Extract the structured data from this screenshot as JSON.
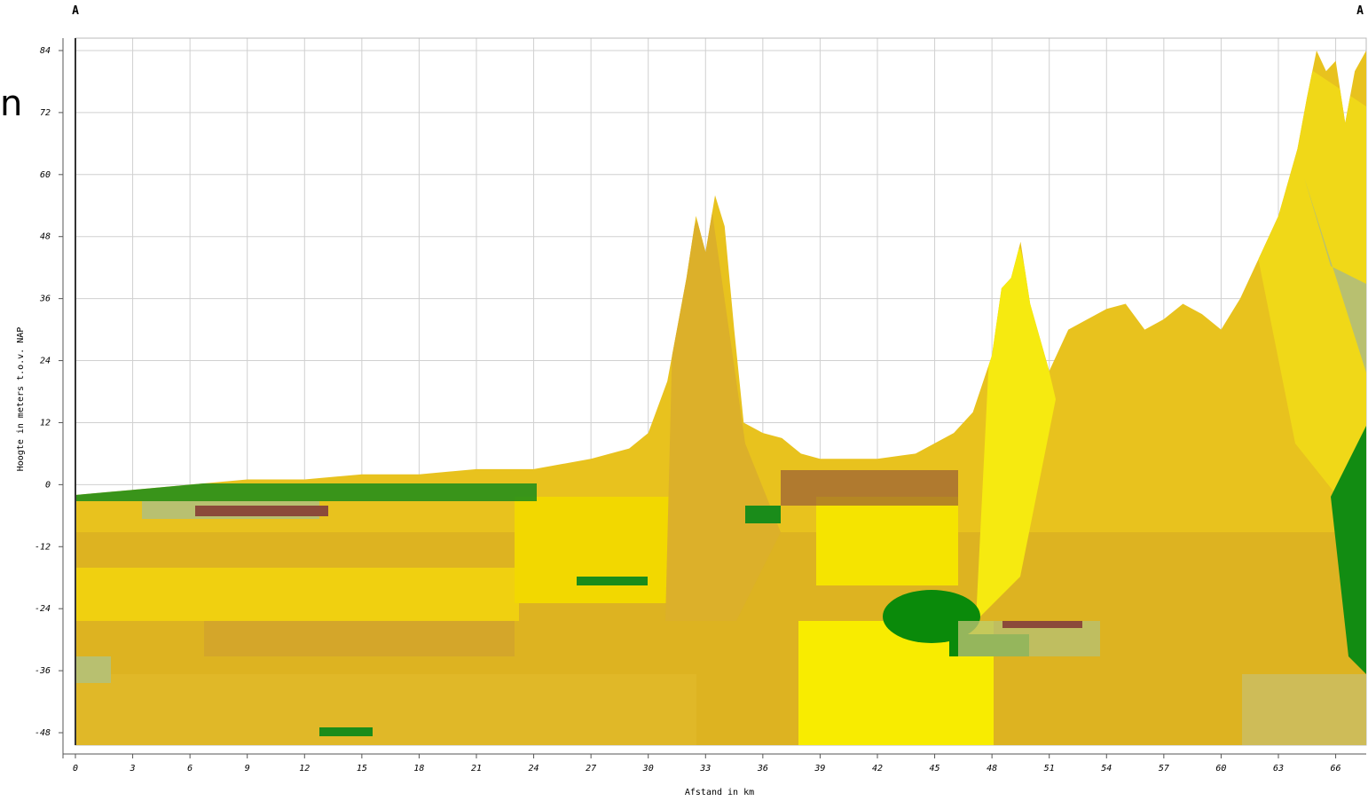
{
  "chart_data": {
    "type": "area",
    "labels": {
      "left": "A",
      "right": "A",
      "edge": "n"
    },
    "x_label": "Afstand in km",
    "y_label": "Hoogte in meters t.o.v. NAP",
    "x": [
      0,
      3,
      6,
      9,
      12,
      15,
      18,
      21,
      24,
      27,
      29,
      30,
      31,
      32,
      32.5,
      33,
      33.5,
      34,
      34.5,
      35,
      36,
      37,
      38,
      39,
      40,
      42,
      44,
      46,
      47,
      48,
      48.5,
      49,
      49.5,
      50,
      51,
      52,
      53,
      54,
      55,
      56,
      57,
      58,
      59,
      60,
      61,
      62,
      63,
      64,
      64.5,
      65,
      65.5,
      66,
      66.5,
      67,
      67.6
    ],
    "values": [
      -2,
      -1,
      0,
      1,
      1,
      2,
      2,
      3,
      3,
      5,
      7,
      10,
      20,
      40,
      52,
      45,
      56,
      50,
      30,
      12,
      10,
      9,
      6,
      5,
      5,
      5,
      6,
      10,
      14,
      25,
      38,
      40,
      47,
      35,
      22,
      30,
      32,
      34,
      35,
      30,
      32,
      35,
      33,
      30,
      36,
      44,
      52,
      65,
      75,
      84,
      80,
      82,
      70,
      80,
      84
    ],
    "color": "#e8c21e",
    "xlim": [
      0,
      67.6
    ],
    "ylim": [
      -50.4,
      86.4
    ],
    "xticks": [
      0,
      3,
      6,
      9,
      12,
      15,
      18,
      21,
      24,
      27,
      30,
      33,
      36,
      39,
      42,
      45,
      48,
      51,
      54,
      57,
      60,
      63,
      66
    ],
    "yticks": [
      -48,
      -36,
      -24,
      -12,
      0,
      12,
      24,
      36,
      48,
      60,
      72,
      84
    ],
    "grid": true
  }
}
